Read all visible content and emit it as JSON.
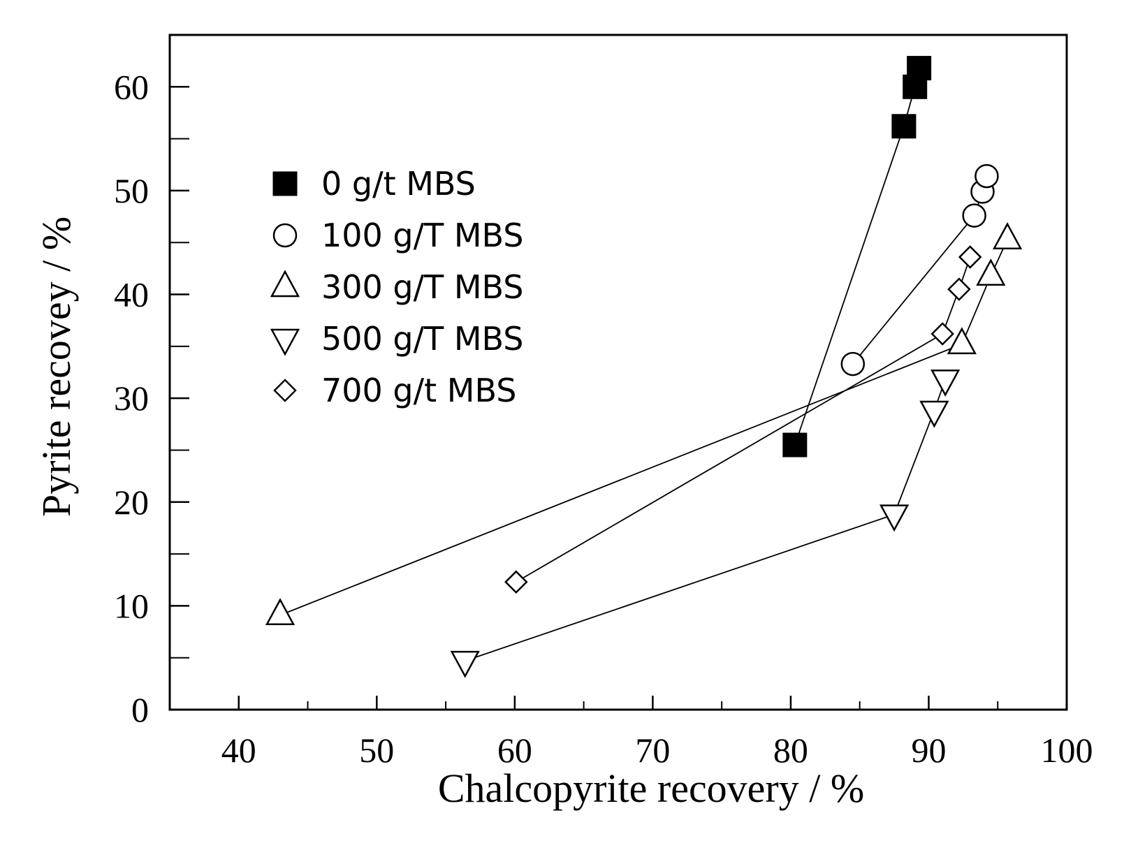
{
  "chart_data": {
    "type": "scatter",
    "xlabel": "Chalcopyrite recovery  /  %",
    "ylabel": "Pyrite recovey  /  %",
    "xlim": [
      35,
      100
    ],
    "ylim": [
      0,
      65
    ],
    "x_ticks": [
      40,
      50,
      60,
      70,
      80,
      90,
      100
    ],
    "y_ticks": [
      0,
      10,
      20,
      30,
      40,
      50,
      60
    ],
    "x_tick_labels": [
      "40",
      "50",
      "60",
      "70",
      "80",
      "90",
      "100"
    ],
    "y_tick_labels": [
      "0",
      "10",
      "20",
      "30",
      "40",
      "50",
      "60"
    ],
    "legend_position": "upper-left",
    "grid": false,
    "series": [
      {
        "name": "0 g/t MBS",
        "marker": "filled-square",
        "points": [
          [
            80.3,
            25.5
          ],
          [
            88.2,
            56.2
          ],
          [
            89.0,
            60.0
          ],
          [
            89.3,
            61.8
          ]
        ]
      },
      {
        "name": "100 g/T MBS",
        "marker": "open-circle",
        "points": [
          [
            84.5,
            33.3
          ],
          [
            93.3,
            47.6
          ],
          [
            93.9,
            49.9
          ],
          [
            94.2,
            51.4
          ]
        ]
      },
      {
        "name": "300 g/T MBS",
        "marker": "open-triangle-up",
        "points": [
          [
            43.0,
            9.1
          ],
          [
            92.4,
            35.2
          ],
          [
            94.5,
            41.8
          ],
          [
            95.7,
            45.3
          ]
        ]
      },
      {
        "name": "500 g/T MBS",
        "marker": "open-triangle-down",
        "points": [
          [
            56.4,
            4.7
          ],
          [
            87.5,
            18.8
          ],
          [
            90.4,
            28.8
          ],
          [
            91.2,
            31.8
          ]
        ]
      },
      {
        "name": "700 g/t MBS",
        "marker": "open-diamond",
        "points": [
          [
            60.1,
            12.3
          ],
          [
            91.0,
            36.2
          ],
          [
            92.2,
            40.5
          ],
          [
            93.0,
            43.6
          ]
        ]
      }
    ]
  }
}
